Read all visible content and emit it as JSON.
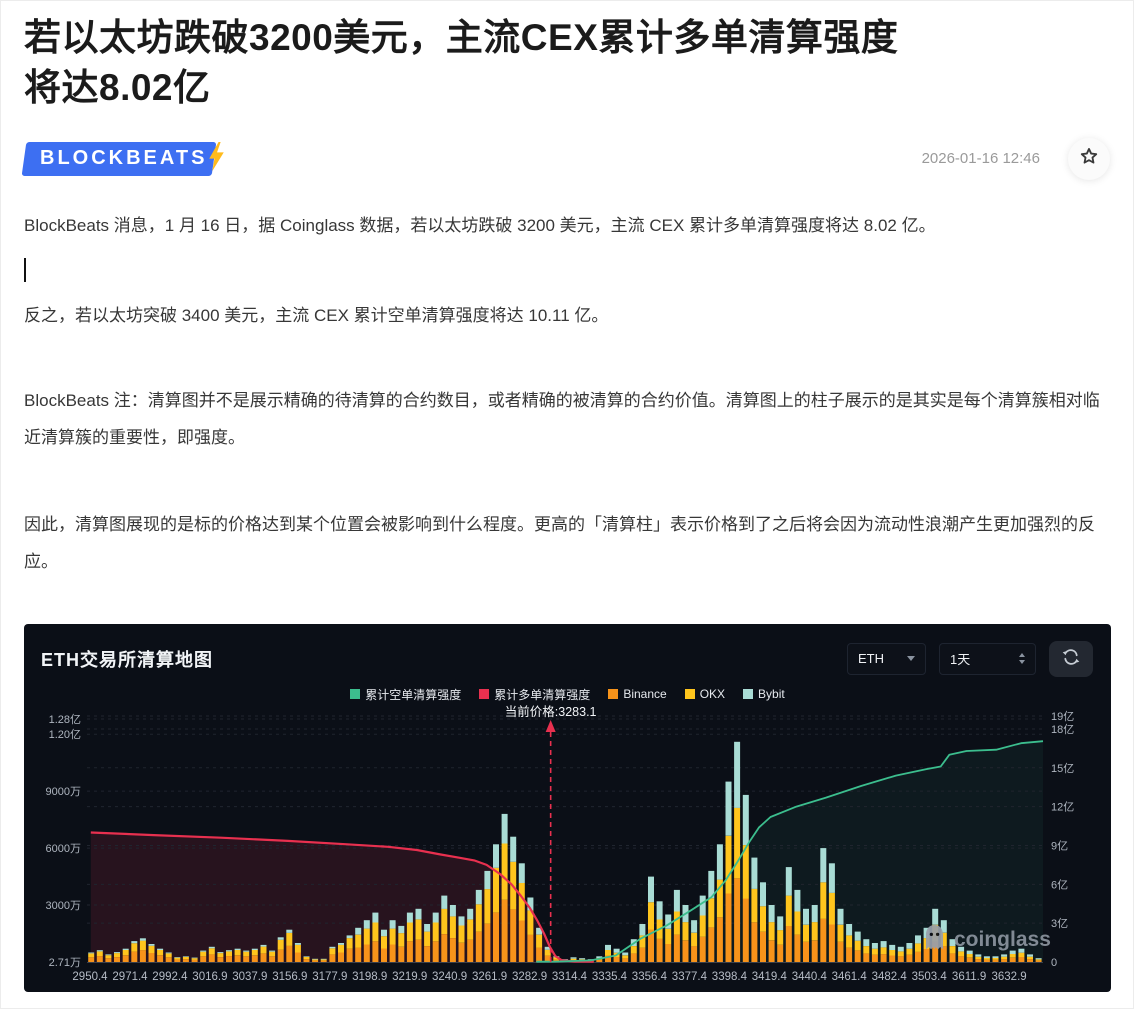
{
  "article": {
    "title_lines": [
      "若以太坊跌破3200美元，主流CEX累计多单清算强度",
      "将达8.02亿"
    ],
    "brand": "BLOCKBEATS",
    "date": "2026-01-16 12:46",
    "paragraphs": [
      "BlockBeats 消息，1 月 16 日，据 Coinglass 数据，若以太坊跌破 3200 美元，主流 CEX 累计多单清算强度将达 8.02 亿。",
      "反之，若以太坊突破 3400 美元，主流 CEX 累计空单清算强度将达 10.11 亿。",
      "BlockBeats 注：清算图并不是展示精确的待清算的合约数目，或者精确的被清算的合约价值。清算图上的柱子展示的是其实是每个清算簇相对临近清算簇的重要性，即强度。",
      "因此，清算图展现的是标的价格达到某个位置会被影响到什么程度。更高的「清算柱」表示价格到了之后将会因为流动性浪潮产生更加强烈的反应。"
    ]
  },
  "chart": {
    "panel_title": "ETH交易所清算地图",
    "coin_select": "ETH",
    "interval_select": "1天",
    "watermark": "coinglass",
    "current_price_label": "当前价格:3283.1",
    "legend": [
      {
        "label": "累计空单清算强度",
        "color": "#3CBE8E"
      },
      {
        "label": "累计多单清算强度",
        "color": "#E8304F"
      },
      {
        "label": "Binance",
        "color": "#F7931A"
      },
      {
        "label": "OKX",
        "color": "#FFC51D"
      },
      {
        "label": "Bybit",
        "color": "#A9DCD5"
      }
    ]
  },
  "chart_data": {
    "type": "combo: stacked-bar liquidation clusters + cumulative lines",
    "title": "ETH交易所清算地图",
    "current_price": 3283.1,
    "current_price_frac": 0.485,
    "x_tick_labels": [
      "2950.4",
      "2971.4",
      "2992.4",
      "3016.9",
      "3037.9",
      "3156.9",
      "3177.9",
      "3198.9",
      "3219.9",
      "3240.9",
      "3261.9",
      "3282.9",
      "3314.4",
      "3335.4",
      "3356.4",
      "3377.4",
      "3398.4",
      "3419.4",
      "3440.4",
      "3461.4",
      "3482.4",
      "3503.4",
      "3611.9",
      "3632.9"
    ],
    "left_axis": {
      "unit": "万",
      "ticks": [
        {
          "label": "1.28亿",
          "v": 12800
        },
        {
          "label": "1.20亿",
          "v": 12000
        },
        {
          "label": "9000万",
          "v": 9000
        },
        {
          "label": "6000万",
          "v": 6000
        },
        {
          "label": "3000万",
          "v": 3000
        },
        {
          "label": "2.71万",
          "v": 0
        }
      ]
    },
    "right_axis": {
      "unit": "亿",
      "ticks": [
        {
          "label": "19亿",
          "v": 19
        },
        {
          "label": "18亿",
          "v": 18
        },
        {
          "label": "15亿",
          "v": 15
        },
        {
          "label": "12亿",
          "v": 12
        },
        {
          "label": "9亿",
          "v": 9
        },
        {
          "label": "6亿",
          "v": 6
        },
        {
          "label": "3亿",
          "v": 3
        },
        {
          "label": "0",
          "v": 0
        }
      ]
    },
    "bar_series_names": [
      "Binance",
      "OKX",
      "Bybit"
    ],
    "bars_unit": "万 (estimated liquidation cluster strength, left axis)",
    "bar_totals": [
      500,
      620,
      400,
      520,
      700,
      1100,
      1250,
      950,
      700,
      500,
      250,
      300,
      220,
      600,
      800,
      520,
      620,
      700,
      600,
      700,
      900,
      600,
      1300,
      1700,
      1000,
      300,
      150,
      150,
      800,
      1000,
      1400,
      1800,
      2200,
      2600,
      1700,
      2200,
      1900,
      2600,
      2800,
      2000,
      2600,
      3500,
      3000,
      2400,
      2800,
      3800,
      4800,
      6200,
      7800,
      6600,
      5200,
      3400,
      1800,
      800,
      300,
      150,
      250,
      200,
      150,
      300,
      900,
      700,
      500,
      1200,
      2000,
      4500,
      3200,
      2500,
      3800,
      3000,
      2200,
      3500,
      4800,
      6200,
      9500,
      11600,
      8800,
      5500,
      4200,
      3000,
      2400,
      5000,
      3800,
      2800,
      3000,
      6000,
      5200,
      2800,
      2000,
      1600,
      1200,
      1000,
      1100,
      900,
      800,
      1000,
      1400,
      1800,
      2800,
      2200,
      1200,
      800,
      600,
      400,
      300,
      300,
      400,
      600,
      700,
      400,
      200
    ],
    "stack_profiles": [
      {
        "until": 30,
        "f": [
          0.5,
          0.4,
          0.1
        ]
      },
      {
        "until": 54,
        "f": [
          0.42,
          0.38,
          0.2
        ]
      },
      {
        "until": 110,
        "f": [
          0.38,
          0.32,
          0.3
        ]
      }
    ],
    "lines": {
      "long": {
        "name": "累计多单清算强度",
        "axis": "right(亿)",
        "points": [
          [
            0.004,
            10.0
          ],
          [
            0.07,
            9.8
          ],
          [
            0.14,
            9.6
          ],
          [
            0.21,
            9.35
          ],
          [
            0.27,
            9.1
          ],
          [
            0.315,
            8.9
          ],
          [
            0.345,
            8.65
          ],
          [
            0.37,
            8.3
          ],
          [
            0.39,
            8.05
          ],
          [
            0.405,
            7.85
          ],
          [
            0.418,
            7.5
          ],
          [
            0.432,
            6.8
          ],
          [
            0.444,
            6.0
          ],
          [
            0.454,
            5.1
          ],
          [
            0.463,
            4.2
          ],
          [
            0.471,
            3.2
          ],
          [
            0.478,
            2.2
          ],
          [
            0.484,
            1.2
          ],
          [
            0.49,
            0.45
          ],
          [
            0.497,
            0.12
          ],
          [
            0.51,
            0.04
          ],
          [
            0.53,
            0.02
          ]
        ]
      },
      "short": {
        "name": "累计空单清算强度",
        "axis": "right(亿)",
        "points": [
          [
            0.47,
            0.02
          ],
          [
            0.49,
            0.03
          ],
          [
            0.527,
            0.12
          ],
          [
            0.553,
            0.5
          ],
          [
            0.579,
            1.8
          ],
          [
            0.606,
            2.8
          ],
          [
            0.632,
            4.0
          ],
          [
            0.653,
            5.0
          ],
          [
            0.668,
            6.3
          ],
          [
            0.681,
            7.8
          ],
          [
            0.693,
            9.3
          ],
          [
            0.703,
            10.4
          ],
          [
            0.715,
            11.2
          ],
          [
            0.742,
            12.0
          ],
          [
            0.773,
            12.7
          ],
          [
            0.81,
            13.6
          ],
          [
            0.846,
            14.4
          ],
          [
            0.878,
            14.9
          ],
          [
            0.893,
            15.1
          ],
          [
            0.902,
            16.0
          ],
          [
            0.92,
            16.3
          ],
          [
            0.951,
            16.4
          ],
          [
            0.977,
            16.9
          ],
          [
            1.0,
            17.05
          ]
        ]
      }
    },
    "colors": {
      "binance": "#F7931A",
      "okx": "#FFC51D",
      "bybit": "#A9DCD5",
      "long_line": "#E8304F",
      "short_line": "#3CBE8E",
      "long_fill": "rgba(232,48,79,0.13)",
      "short_fill": "rgba(60,190,142,0.07)",
      "grid": "#20252F",
      "axis_text": "#aeb5bf",
      "panel_bg": "#0B0F17"
    },
    "legend_position": "top-center",
    "grid": true
  }
}
